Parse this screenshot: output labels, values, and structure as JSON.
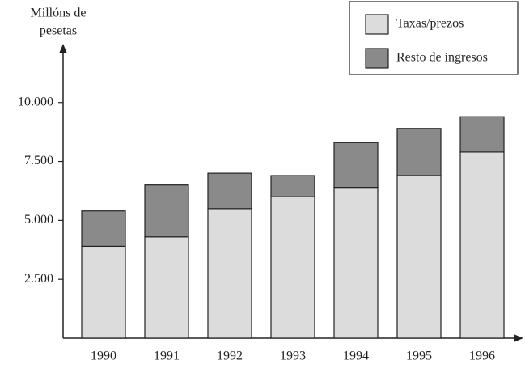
{
  "chart_data": {
    "type": "stacked_bar",
    "ylabel": [
      "Millóns de",
      "pesetas"
    ],
    "categories": [
      "1990",
      "1991",
      "1992",
      "1993",
      "1994",
      "1995",
      "1996"
    ],
    "series": [
      {
        "name": "Taxas/prezos",
        "color": "#dcdcdc",
        "values": [
          3900,
          4300,
          5500,
          6000,
          6400,
          6900,
          7900
        ]
      },
      {
        "name": "Resto de ingresos",
        "color": "#8a8a8a",
        "values": [
          1500,
          2200,
          1500,
          900,
          1900,
          2000,
          1500
        ]
      }
    ],
    "ylim": [
      0,
      12360
    ],
    "yticks": [
      {
        "value": 2500,
        "label": "2.500"
      },
      {
        "value": 5000,
        "label": "5.000"
      },
      {
        "value": 7500,
        "label": "7.500"
      },
      {
        "value": 10000,
        "label": "10.000"
      }
    ],
    "legend": "top-right"
  }
}
